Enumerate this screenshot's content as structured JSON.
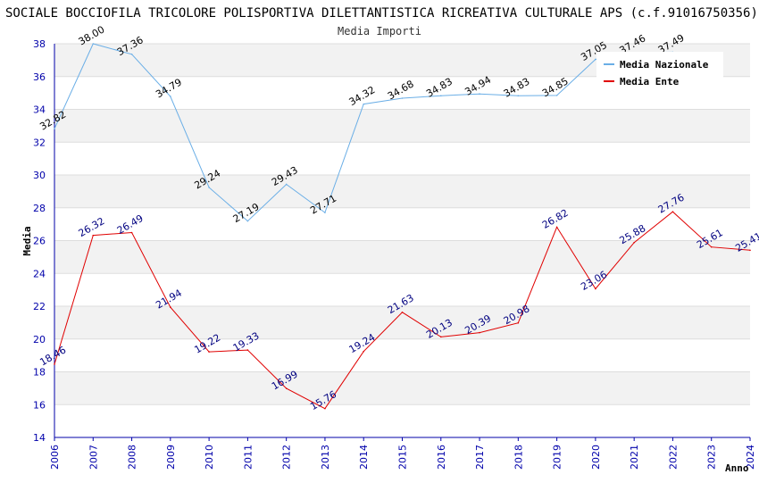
{
  "chart_data": {
    "type": "line",
    "title": "SOCIALE BOCCIOFILA TRICOLORE POLISPORTIVA DILETTANTISTICA RICREATIVA CULTURALE APS (c.f.91016750356)",
    "subtitle": "Media Importi",
    "xlabel": "Anno",
    "ylabel": "Media",
    "ylim": [
      14,
      38
    ],
    "yticks": [
      14,
      16,
      18,
      20,
      22,
      24,
      26,
      28,
      30,
      32,
      34,
      36,
      38
    ],
    "x": [
      "2006",
      "2007",
      "2008",
      "2009",
      "2010",
      "2011",
      "2012",
      "2013",
      "2014",
      "2015",
      "2016",
      "2017",
      "2018",
      "2019",
      "2020",
      "2021",
      "2022",
      "2023",
      "2024"
    ],
    "legend_position": "top-right",
    "series": [
      {
        "name": "Media Nazionale",
        "color": "#6aaee6",
        "label_color": "#000000",
        "values": [
          32.82,
          38.0,
          37.36,
          34.79,
          29.24,
          27.19,
          29.43,
          27.71,
          34.32,
          34.68,
          34.83,
          34.94,
          34.83,
          34.85,
          37.05,
          37.46,
          37.49,
          null,
          null
        ],
        "labels": [
          "32.82",
          "38.00",
          "37.36",
          "34.79",
          "29.24",
          "27.19",
          "29.43",
          "27.71",
          "34.32",
          "34.68",
          "34.83",
          "34.94",
          "34.83",
          "34.85",
          "37.05",
          "37.46",
          "37.49",
          "",
          ""
        ]
      },
      {
        "name": "Media Ente",
        "color": "#e00000",
        "label_color": "#000080",
        "values": [
          18.46,
          26.32,
          26.49,
          21.94,
          19.22,
          19.33,
          16.99,
          15.76,
          19.24,
          21.63,
          20.13,
          20.39,
          20.98,
          26.82,
          23.06,
          25.88,
          27.76,
          25.61,
          25.41
        ],
        "labels": [
          "18.46",
          "26.32",
          "26.49",
          "21.94",
          "19.22",
          "19.33",
          "16.99",
          "15.76",
          "19.24",
          "21.63",
          "20.13",
          "20.39",
          "20.98",
          "26.82",
          "23.06",
          "25.88",
          "27.76",
          "25.61",
          "25.41"
        ]
      }
    ]
  }
}
